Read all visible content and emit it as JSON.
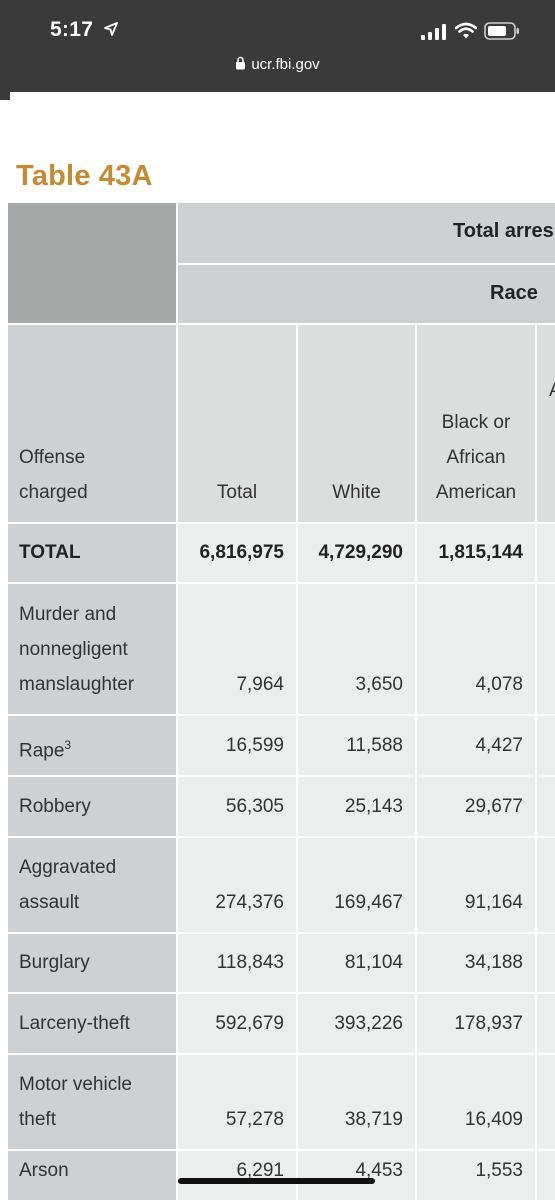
{
  "status_bar": {
    "time": "5:17",
    "url": "ucr.fbi.gov"
  },
  "table_title": "Table 43A",
  "header": {
    "group": "Total arres",
    "subgroup": "Race",
    "col_label_lines": [
      "Offense",
      "charged"
    ],
    "columns": {
      "total": "Total",
      "white": "White",
      "black": [
        "Black or",
        "African",
        "American"
      ],
      "partial": "A"
    }
  },
  "rows": [
    {
      "label": [
        "TOTAL"
      ],
      "total": "6,816,975",
      "white": "4,729,290",
      "black": "1,815,144",
      "bold": true
    },
    {
      "label": [
        "Murder and",
        "nonnegligent",
        "manslaughter"
      ],
      "total": "7,964",
      "white": "3,650",
      "black": "4,078"
    },
    {
      "label": [
        "Rape"
      ],
      "footnote": "3",
      "total": "16,599",
      "white": "11,588",
      "black": "4,427"
    },
    {
      "label": [
        "Robbery"
      ],
      "total": "56,305",
      "white": "25,143",
      "black": "29,677"
    },
    {
      "label": [
        "Aggravated",
        "assault"
      ],
      "total": "274,376",
      "white": "169,467",
      "black": "91,164"
    },
    {
      "label": [
        "Burglary"
      ],
      "total": "118,843",
      "white": "81,104",
      "black": "34,188"
    },
    {
      "label": [
        "Larceny-theft"
      ],
      "total": "592,679",
      "white": "393,226",
      "black": "178,937"
    },
    {
      "label": [
        "Motor vehicle",
        "theft"
      ],
      "total": "57,278",
      "white": "38,719",
      "black": "16,409"
    },
    {
      "label": [
        "Arson"
      ],
      "total": "6,291",
      "white": "4,453",
      "black": "1,553"
    }
  ]
}
